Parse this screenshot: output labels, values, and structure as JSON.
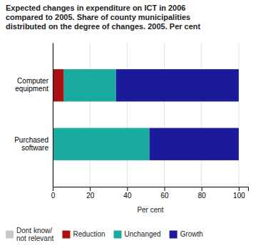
{
  "chart_data": {
    "type": "bar",
    "orientation": "horizontal",
    "stacked": true,
    "title": "Expected changes in expenditure on ICT in 2006\ncompared to 2005. Share of county municipalities\ndistributed on the degree of changes. 2005. Per cent",
    "categories": [
      "Purchased\nsoftware",
      "Computer\nequipment"
    ],
    "series": [
      {
        "name": "Dont know/\nnot relevant",
        "color": "#c8c8c8",
        "values": [
          0,
          0
        ]
      },
      {
        "name": "Reduction",
        "color": "#aa1111",
        "values": [
          0,
          6
        ]
      },
      {
        "name": "Unchanged",
        "color": "#1aaba0",
        "values": [
          52,
          28
        ]
      },
      {
        "name": "Growth",
        "color": "#1a1a9a",
        "values": [
          48,
          66
        ]
      }
    ],
    "xlabel": "Per cent",
    "xlim": [
      0,
      105
    ],
    "xticks": [
      0,
      20,
      40,
      60,
      80,
      100
    ],
    "grid": true,
    "legend": "bottom"
  }
}
